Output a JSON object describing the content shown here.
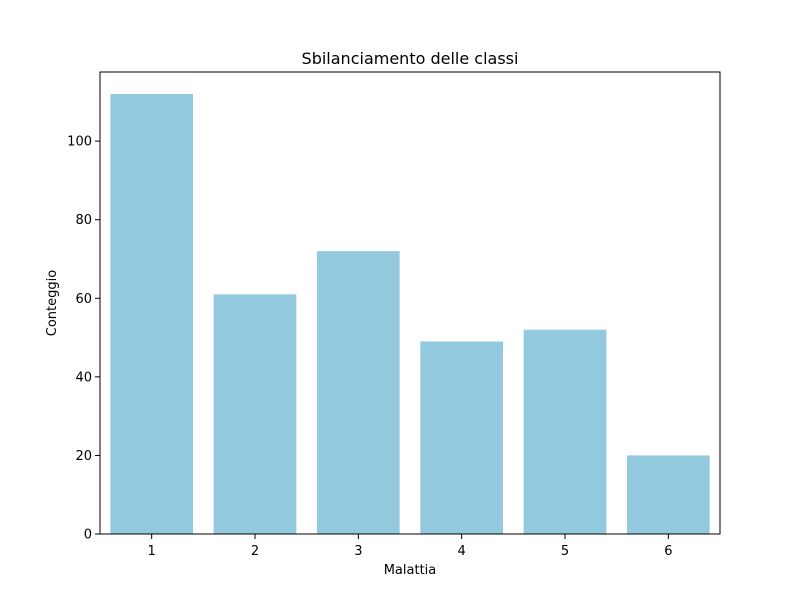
{
  "chart_data": {
    "type": "bar",
    "title": "Sbilanciamento delle classi",
    "xlabel": "Malattia",
    "ylabel": "Conteggio",
    "categories": [
      "1",
      "2",
      "3",
      "4",
      "5",
      "6"
    ],
    "values": [
      112,
      61,
      72,
      49,
      52,
      20
    ],
    "ylim": [
      0,
      117.6
    ],
    "yticks": [
      0,
      20,
      40,
      60,
      80,
      100
    ],
    "bar_color": "#92c9de",
    "grid": false,
    "legend": "none"
  }
}
